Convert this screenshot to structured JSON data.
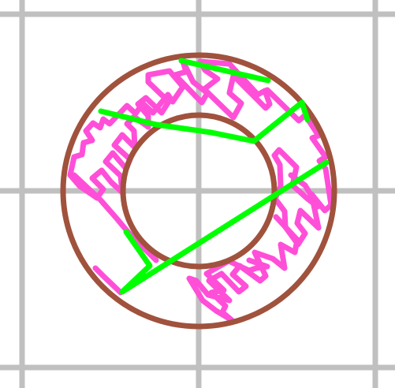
{
  "colors": {
    "background": "#ffffff",
    "grid": "#c0c0c0",
    "ring_outline": "#a0523d",
    "hatch": "#ff4fd8",
    "stroke": "#00ff00"
  }
}
